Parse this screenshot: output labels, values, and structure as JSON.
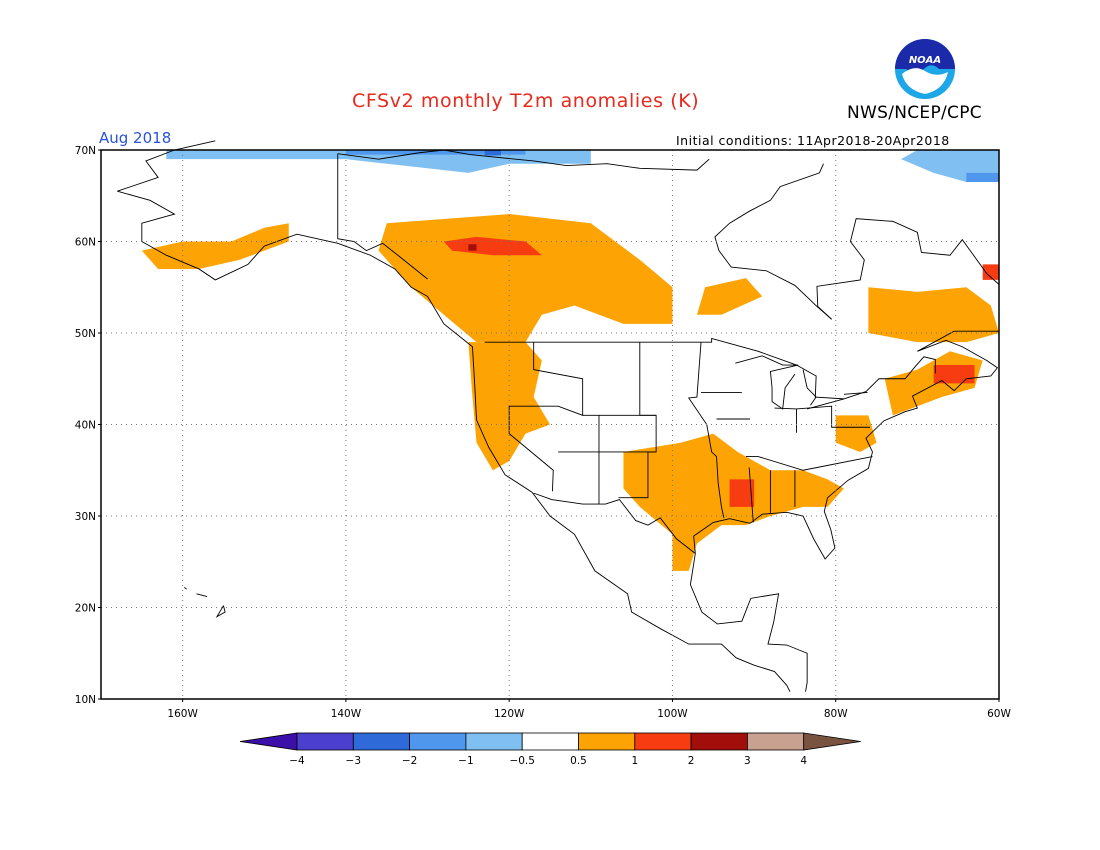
{
  "header": {
    "title": "CFSv2 monthly T2m anomalies (K)",
    "agency": "NWS/NCEP/CPC",
    "logo_text": "NOAA",
    "month": "Aug 2018",
    "initial_conditions": "Initial conditions: 11Apr2018-20Apr2018"
  },
  "axes": {
    "lat_ticks": [
      "70N",
      "60N",
      "50N",
      "40N",
      "30N",
      "20N",
      "10N"
    ],
    "lon_ticks": [
      "160W",
      "140W",
      "120W",
      "100W",
      "80W",
      "60W"
    ],
    "lon_range": [
      -170,
      -60
    ],
    "lat_range": [
      10,
      70
    ]
  },
  "colorbar": {
    "ticks": [
      "−4",
      "−3",
      "−2",
      "−1",
      "−0.5",
      "0.5",
      "1",
      "2",
      "3",
      "4"
    ],
    "colors": [
      "#3a10a8",
      "#4b3fd0",
      "#2e6ad8",
      "#4f97ec",
      "#7fbff2",
      "#ffffff",
      "#fda304",
      "#f63c10",
      "#a20e0a",
      "#c9a191",
      "#7a5240"
    ]
  },
  "chart_data": {
    "type": "heatmap",
    "title": "CFSv2 monthly T2m anomalies (K)",
    "valid_month": "Aug 2018",
    "units": "K",
    "domain": {
      "lon": [
        -170,
        -60
      ],
      "lat": [
        10,
        70
      ]
    },
    "levels": [
      -4,
      -3,
      -2,
      -1,
      -0.5,
      0.5,
      1,
      2,
      3,
      4
    ],
    "anomaly_regions": [
      {
        "region": "Western Canada (BC/Alberta)",
        "lon": [
          -135,
          -100
        ],
        "lat": [
          49,
          63
        ],
        "anomaly_range": [
          0.5,
          1
        ]
      },
      {
        "region": "Northern BC / Yukon border core",
        "lon": [
          -128,
          -116
        ],
        "lat": [
          57,
          60
        ],
        "anomaly_range": [
          1,
          2
        ]
      },
      {
        "region": "US Pacific Northwest / West Coast",
        "lon": [
          -125,
          -113
        ],
        "lat": [
          36,
          49
        ],
        "anomaly_range": [
          0.5,
          1
        ]
      },
      {
        "region": "Southern Plains / Southeast US",
        "lon": [
          -106,
          -78
        ],
        "lat": [
          27,
          39
        ],
        "anomaly_range": [
          0.5,
          1
        ]
      },
      {
        "region": "Lower Mississippi Valley",
        "lon": [
          -93,
          -90
        ],
        "lat": [
          31,
          34
        ],
        "anomaly_range": [
          1,
          2
        ]
      },
      {
        "region": "Quebec / Labrador",
        "lon": [
          -75,
          -60
        ],
        "lat": [
          49,
          55
        ],
        "anomaly_range": [
          0.5,
          1
        ]
      },
      {
        "region": "New England / Maritimes",
        "lon": [
          -72,
          -62
        ],
        "lat": [
          42,
          47
        ],
        "anomaly_range": [
          1,
          2
        ]
      },
      {
        "region": "Southern Alaska",
        "lon": [
          -165,
          -148
        ],
        "lat": [
          57,
          62
        ],
        "anomaly_range": [
          0.5,
          1
        ]
      },
      {
        "region": "Northern Canada coast (Arctic)",
        "lon": [
          -162,
          -110
        ],
        "lat": [
          67,
          70
        ],
        "anomaly_range": [
          -1,
          -0.5
        ]
      },
      {
        "region": "Baffin Island",
        "lon": [
          -70,
          -60
        ],
        "lat": [
          66,
          70
        ],
        "anomaly_range": [
          -2,
          -0.5
        ]
      },
      {
        "region": "Northern Mexico / Texas",
        "lon": [
          -100,
          -95
        ],
        "lat": [
          24,
          31
        ],
        "anomaly_range": [
          0.5,
          1
        ]
      }
    ]
  }
}
